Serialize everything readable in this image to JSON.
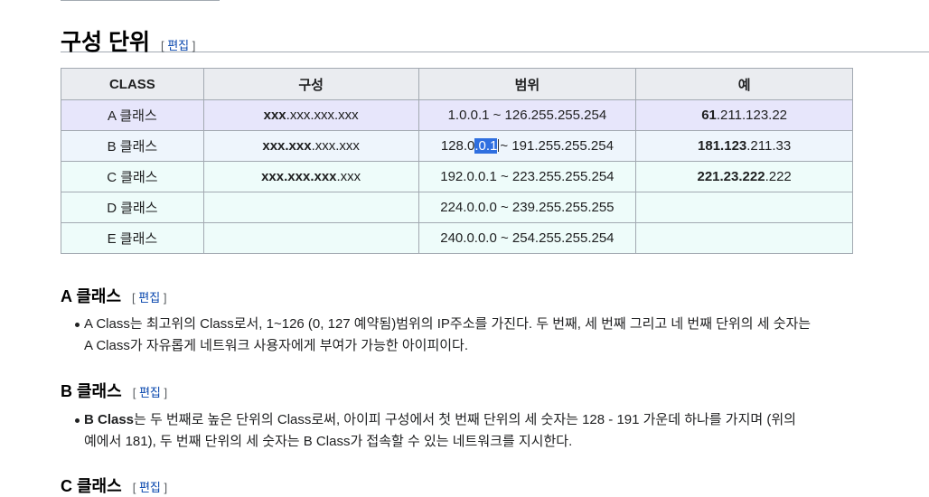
{
  "section": {
    "title": "구성 단위",
    "edit_open": "[",
    "edit_label": "편집",
    "edit_close": "]"
  },
  "table": {
    "headers": [
      "CLASS",
      "구성",
      "범위",
      "예"
    ],
    "rows": [
      {
        "cls": "A 클래스",
        "form_bold": "xxx",
        "form_rest": ".xxx.xxx.xxx",
        "range": "1.0.0.1 ~ 126.255.255.254",
        "ex_bold": "61",
        "ex_rest": ".211.123.22"
      },
      {
        "cls": "B 클래스",
        "form_bold": "xxx.xxx",
        "form_rest": ".xxx.xxx",
        "range_pre": "128.0",
        "range_sel": ".0.1",
        "range_post": "~ 191.255.255.254",
        "ex_bold": "181.123",
        "ex_rest": ".211.33"
      },
      {
        "cls": "C 클래스",
        "form_bold": "xxx.xxx.xxx",
        "form_rest": ".xxx",
        "range": "192.0.0.1 ~ 223.255.255.254",
        "ex_bold": "221.23.222",
        "ex_rest": ".222"
      },
      {
        "cls": "D 클래스",
        "form_bold": "",
        "form_rest": "",
        "range": "224.0.0.0 ~ 239.255.255.255",
        "ex_bold": "",
        "ex_rest": ""
      },
      {
        "cls": "E 클래스",
        "form_bold": "",
        "form_rest": "",
        "range": "240.0.0.0 ~ 254.255.255.254",
        "ex_bold": "",
        "ex_rest": ""
      }
    ]
  },
  "subsections": [
    {
      "title": "A 클래스",
      "line1_bold": "",
      "line1": "A Class는 최고위의 Class로서, 1~126 (0, 127 예약됨)범위의 IP주소를 가진다. 두 번째, 세 번째 그리고 네 번째 단위의 세 숫자는",
      "line2": "A Class가 자유롭게 네트워크 사용자에게 부여가 가능한 아이피이다."
    },
    {
      "title": "B 클래스",
      "line1_bold": "B Class",
      "line1": "는 두 번째로 높은 단위의 Class로써, 아이피 구성에서 첫 번째 단위의 세 숫자는 128 - 191 가운데 하나를 가지며 (위의",
      "line2": "예에서 181), 두 번째 단위의 세 숫자는 B Class가 접속할 수 있는 네트워크를 지시한다."
    },
    {
      "title": "C 클래스"
    }
  ],
  "colors": {
    "link": "#0645ad",
    "row_a": "#e7e6fb",
    "row_b": "#eef5fc",
    "row_cde": "#eefcfa",
    "selection": "#2f6fe0"
  }
}
